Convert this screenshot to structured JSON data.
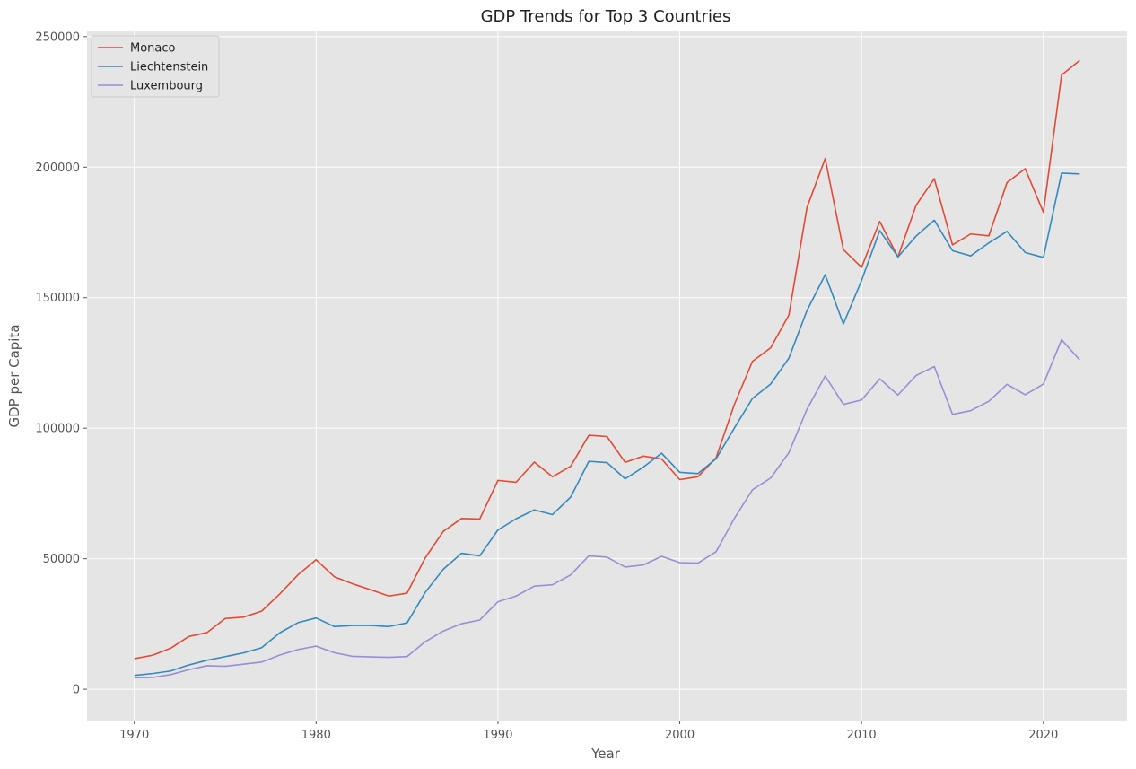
{
  "chart_data": {
    "type": "line",
    "title": "GDP Trends for Top 3 Countries",
    "xlabel": "Year",
    "ylabel": "GDP per Capita",
    "xlim": [
      1967.4,
      2024.6
    ],
    "ylim": [
      -12000,
      252000
    ],
    "x_ticks": [
      1970,
      1980,
      1990,
      2000,
      2010,
      2020
    ],
    "y_ticks": [
      0,
      50000,
      100000,
      150000,
      200000,
      250000
    ],
    "grid": true,
    "legend_position": "top-left",
    "background_color": "#e5e5e5",
    "x": [
      1970,
      1971,
      1972,
      1973,
      1974,
      1975,
      1976,
      1977,
      1978,
      1979,
      1980,
      1981,
      1982,
      1983,
      1984,
      1985,
      1986,
      1987,
      1988,
      1989,
      1990,
      1991,
      1992,
      1993,
      1994,
      1995,
      1996,
      1997,
      1998,
      1999,
      2000,
      2001,
      2002,
      2003,
      2004,
      2005,
      2006,
      2007,
      2008,
      2009,
      2010,
      2011,
      2012,
      2013,
      2014,
      2015,
      2016,
      2017,
      2018,
      2019,
      2020,
      2021,
      2022
    ],
    "series": [
      {
        "name": "Monaco",
        "color": "#e24a33",
        "values": [
          11700,
          13000,
          15700,
          20200,
          21700,
          27100,
          27600,
          29900,
          36500,
          43800,
          49600,
          43100,
          40400,
          38100,
          35700,
          36800,
          50300,
          60500,
          65400,
          65200,
          80000,
          79300,
          87000,
          81400,
          85400,
          97300,
          96800,
          86900,
          89300,
          88200,
          80300,
          81400,
          88700,
          109000,
          125600,
          130800,
          143300,
          184600,
          203300,
          168400,
          161600,
          179200,
          165600,
          185400,
          195600,
          170200,
          174400,
          173700,
          194100,
          199400,
          182700,
          235300,
          240900
        ]
      },
      {
        "name": "Liechtenstein",
        "color": "#348abd",
        "values": [
          5300,
          6000,
          7000,
          9300,
          11100,
          12500,
          13900,
          15900,
          21600,
          25500,
          27300,
          24000,
          24400,
          24400,
          24000,
          25400,
          37100,
          46000,
          52100,
          51100,
          61000,
          65300,
          68700,
          66900,
          73600,
          87300,
          86800,
          80600,
          85100,
          90400,
          83100,
          82600,
          88300,
          100000,
          111400,
          116900,
          126800,
          145100,
          158800,
          139900,
          156600,
          175700,
          165600,
          173600,
          179700,
          168000,
          166000,
          171000,
          175400,
          167300,
          165400,
          197700,
          197400
        ]
      },
      {
        "name": "Luxembourg",
        "color": "#988ed5",
        "values": [
          4400,
          4500,
          5600,
          7500,
          9000,
          8800,
          9600,
          10400,
          13100,
          15200,
          16500,
          14000,
          12600,
          12400,
          12200,
          12500,
          18200,
          22300,
          25100,
          26500,
          33500,
          35700,
          39500,
          40000,
          43800,
          51100,
          50600,
          46800,
          47600,
          50900,
          48500,
          48300,
          52700,
          65400,
          76400,
          80900,
          90600,
          107300,
          120000,
          109100,
          110800,
          118900,
          112700,
          120200,
          123600,
          105300,
          106700,
          110300,
          116800,
          112800,
          116900,
          133900,
          126100
        ]
      }
    ]
  }
}
